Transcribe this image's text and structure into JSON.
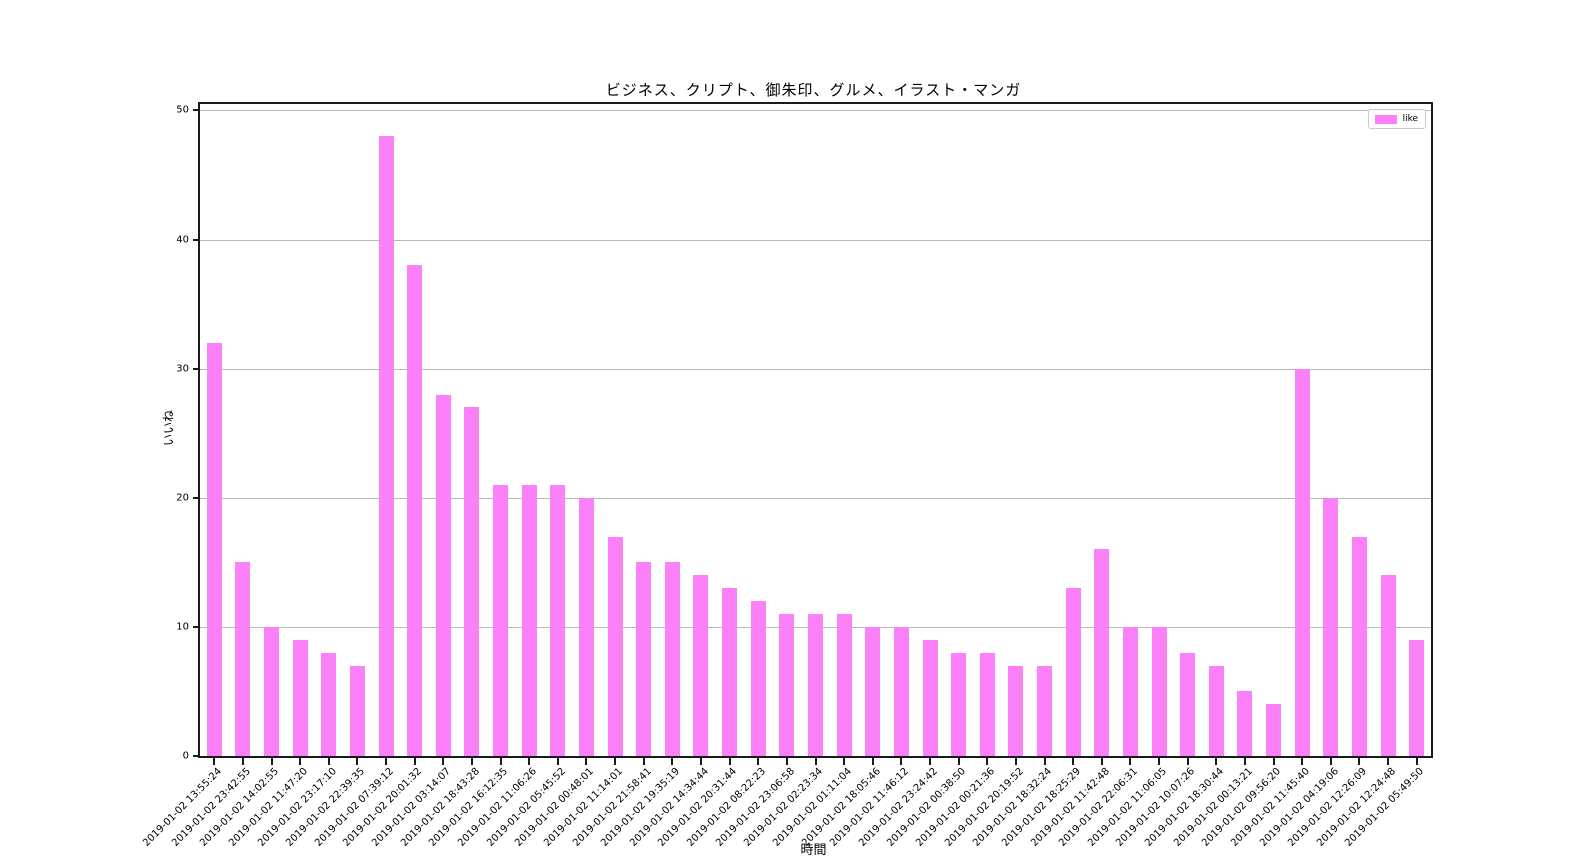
{
  "chart_data": {
    "type": "bar",
    "title": "ビジネス、クリプト、御朱印、グルメ、イラスト・マンガ",
    "xlabel": "時間",
    "ylabel": "いいね",
    "legend_label": "like",
    "legend_position": "upper right",
    "grid": true,
    "bar_color": "#fc80f8",
    "grid_color": "#b8b8b8",
    "spine_color": "#1a1a1a",
    "ylim": [
      0,
      50.5
    ],
    "yticks": [
      0,
      10,
      20,
      30,
      40,
      50
    ],
    "categories": [
      "2019-01-02 13:55:24",
      "2019-01-02 23:42:55",
      "2019-01-02 14:02:55",
      "2019-01-02 11:47:20",
      "2019-01-02 23:17:10",
      "2019-01-02 22:39:35",
      "2019-01-02 07:39:12",
      "2019-01-02 20:01:32",
      "2019-01-02 03:14:07",
      "2019-01-02 18:43:28",
      "2019-01-02 16:12:35",
      "2019-01-02 11:06:26",
      "2019-01-02 05:45:52",
      "2019-01-02 00:48:01",
      "2019-01-02 11:14:01",
      "2019-01-02 21:58:41",
      "2019-01-02 19:35:19",
      "2019-01-02 14:34:44",
      "2019-01-02 20:31:44",
      "2019-01-02 08:22:23",
      "2019-01-02 23:06:58",
      "2019-01-02 02:23:34",
      "2019-01-02 01:11:04",
      "2019-01-02 18:05:46",
      "2019-01-02 11:46:12",
      "2019-01-02 23:24:42",
      "2019-01-02 00:38:50",
      "2019-01-02 00:21:36",
      "2019-01-02 20:19:52",
      "2019-01-02 18:32:24",
      "2019-01-02 18:25:29",
      "2019-01-02 11:42:48",
      "2019-01-02 22:06:31",
      "2019-01-02 11:06:05",
      "2019-01-02 10:07:26",
      "2019-01-02 18:30:44",
      "2019-01-02 00:13:21",
      "2019-01-02 09:56:20",
      "2019-01-02 11:45:40",
      "2019-01-02 04:19:06",
      "2019-01-02 12:26:09",
      "2019-01-02 12:24:48",
      "2019-01-02 05:49:50"
    ],
    "values": [
      32,
      15,
      10,
      9,
      8,
      7,
      48,
      38,
      28,
      27,
      21,
      21,
      21,
      20,
      17,
      15,
      15,
      14,
      13,
      12,
      11,
      11,
      11,
      10,
      10,
      9,
      8,
      8,
      7,
      7,
      13,
      16,
      10,
      10,
      8,
      7,
      5,
      4,
      30,
      20,
      17,
      14,
      9
    ]
  }
}
